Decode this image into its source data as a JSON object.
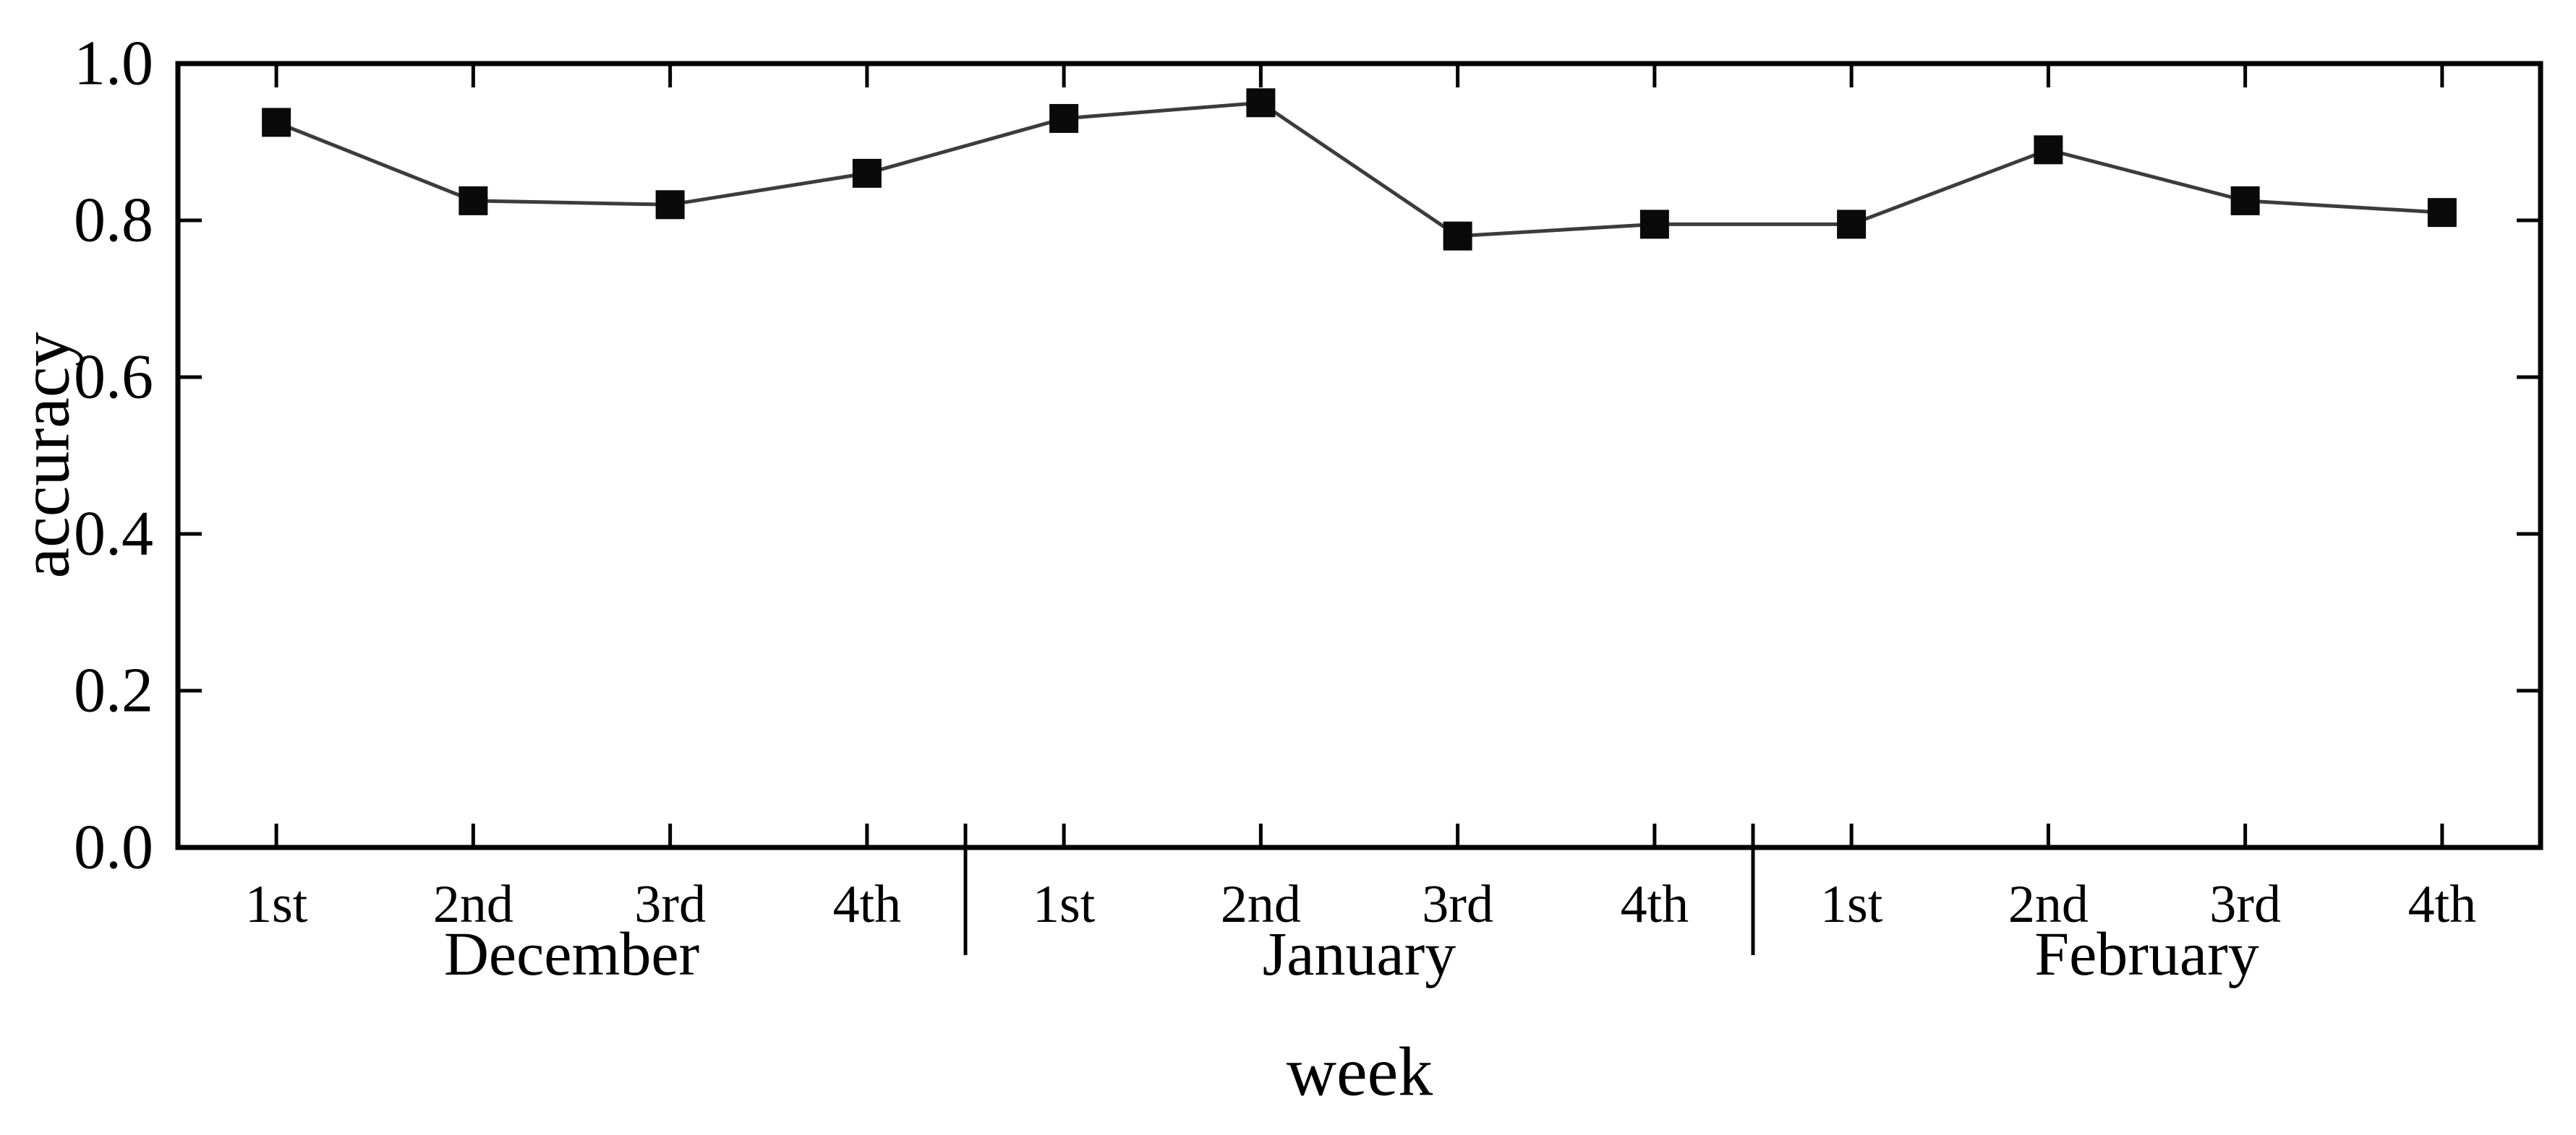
{
  "page": {
    "background": "#ffffff",
    "ink_color": "#000000",
    "line_color": "#3c3c3c",
    "marker_color": "#0a0a0a"
  },
  "chart_data": {
    "type": "line",
    "title": "",
    "xlabel": "week",
    "ylabel": "accuracy",
    "ylim": [
      0.0,
      1.0
    ],
    "y_ticks": [
      0.0,
      0.2,
      0.4,
      0.6,
      0.8,
      1.0
    ],
    "y_tick_labels": [
      "0.0",
      "0.2",
      "0.4",
      "0.6",
      "0.8",
      "1.0"
    ],
    "categories": [
      "1st",
      "2nd",
      "3rd",
      "4th",
      "1st",
      "2nd",
      "3rd",
      "4th",
      "1st",
      "2nd",
      "3rd",
      "4th"
    ],
    "month_groups": [
      {
        "label": "December",
        "from": 0,
        "to": 3
      },
      {
        "label": "January",
        "from": 4,
        "to": 7
      },
      {
        "label": "February",
        "from": 8,
        "to": 11
      }
    ],
    "series": [
      {
        "name": "accuracy",
        "values": [
          0.925,
          0.825,
          0.82,
          0.86,
          0.93,
          0.95,
          0.78,
          0.795,
          0.795,
          0.89,
          0.825,
          0.81
        ]
      }
    ],
    "marker": "filled-square",
    "legend": "none",
    "grid": false
  }
}
